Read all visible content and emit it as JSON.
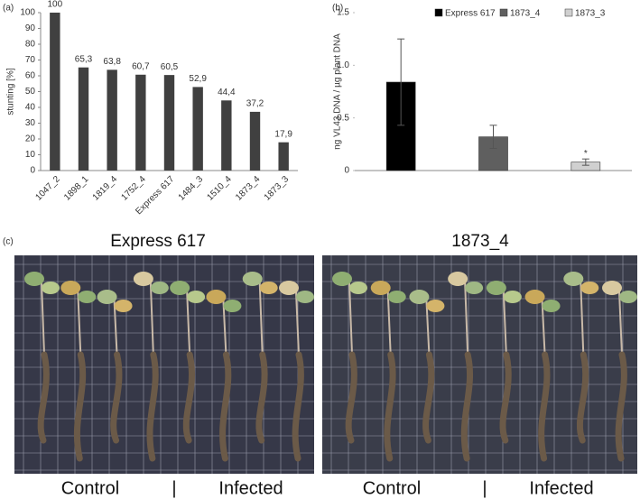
{
  "chart_data": [
    {
      "type": "bar",
      "panel": "(a)",
      "ylabel": "stunting [%]",
      "categories": [
        "1047_2",
        "1898_1",
        "1819_4",
        "1752_4",
        "Express 617",
        "1484_3",
        "1510_4",
        "1873_4",
        "1873_3"
      ],
      "values": [
        100,
        65.3,
        63.8,
        60.7,
        60.5,
        52.9,
        44.4,
        37.2,
        17.9
      ],
      "value_labels": [
        "100",
        "65,3",
        "63,8",
        "60,7",
        "60,5",
        "52,9",
        "44,4",
        "37,2",
        "17,9"
      ],
      "color": "#404040",
      "ylim": [
        0,
        100
      ],
      "yticks": [
        0,
        10,
        20,
        30,
        40,
        50,
        60,
        70,
        80,
        90,
        100
      ]
    },
    {
      "type": "bar",
      "panel": "(b)",
      "ylabel": "ng  VL43 DNA / µg plant DNA",
      "series": [
        {
          "name": "Express 617",
          "color": "#000000",
          "values": [
            0.84
          ],
          "errors": [
            0.41
          ]
        },
        {
          "name": "1873_4",
          "color": "#5f5f5f",
          "values": [
            0.32
          ],
          "errors": [
            0.11
          ]
        },
        {
          "name": "1873_3",
          "color": "#d0d0d0",
          "values": [
            0.08
          ],
          "errors": [
            0.03
          ]
        }
      ],
      "annotation": "*",
      "ylim": [
        0,
        1.5
      ],
      "yticks": [
        0,
        0.5,
        {
          "value": 1,
          "label": "1.0"
        },
        1.5
      ],
      "legend": "top"
    }
  ],
  "panel_c": {
    "label": "(c)",
    "photos": [
      {
        "title": "Express 617",
        "left": "Control",
        "divider": "|",
        "right": "Infected"
      },
      {
        "title": "1873_4",
        "left": "Control",
        "divider": "|",
        "right": "Infected"
      }
    ]
  }
}
